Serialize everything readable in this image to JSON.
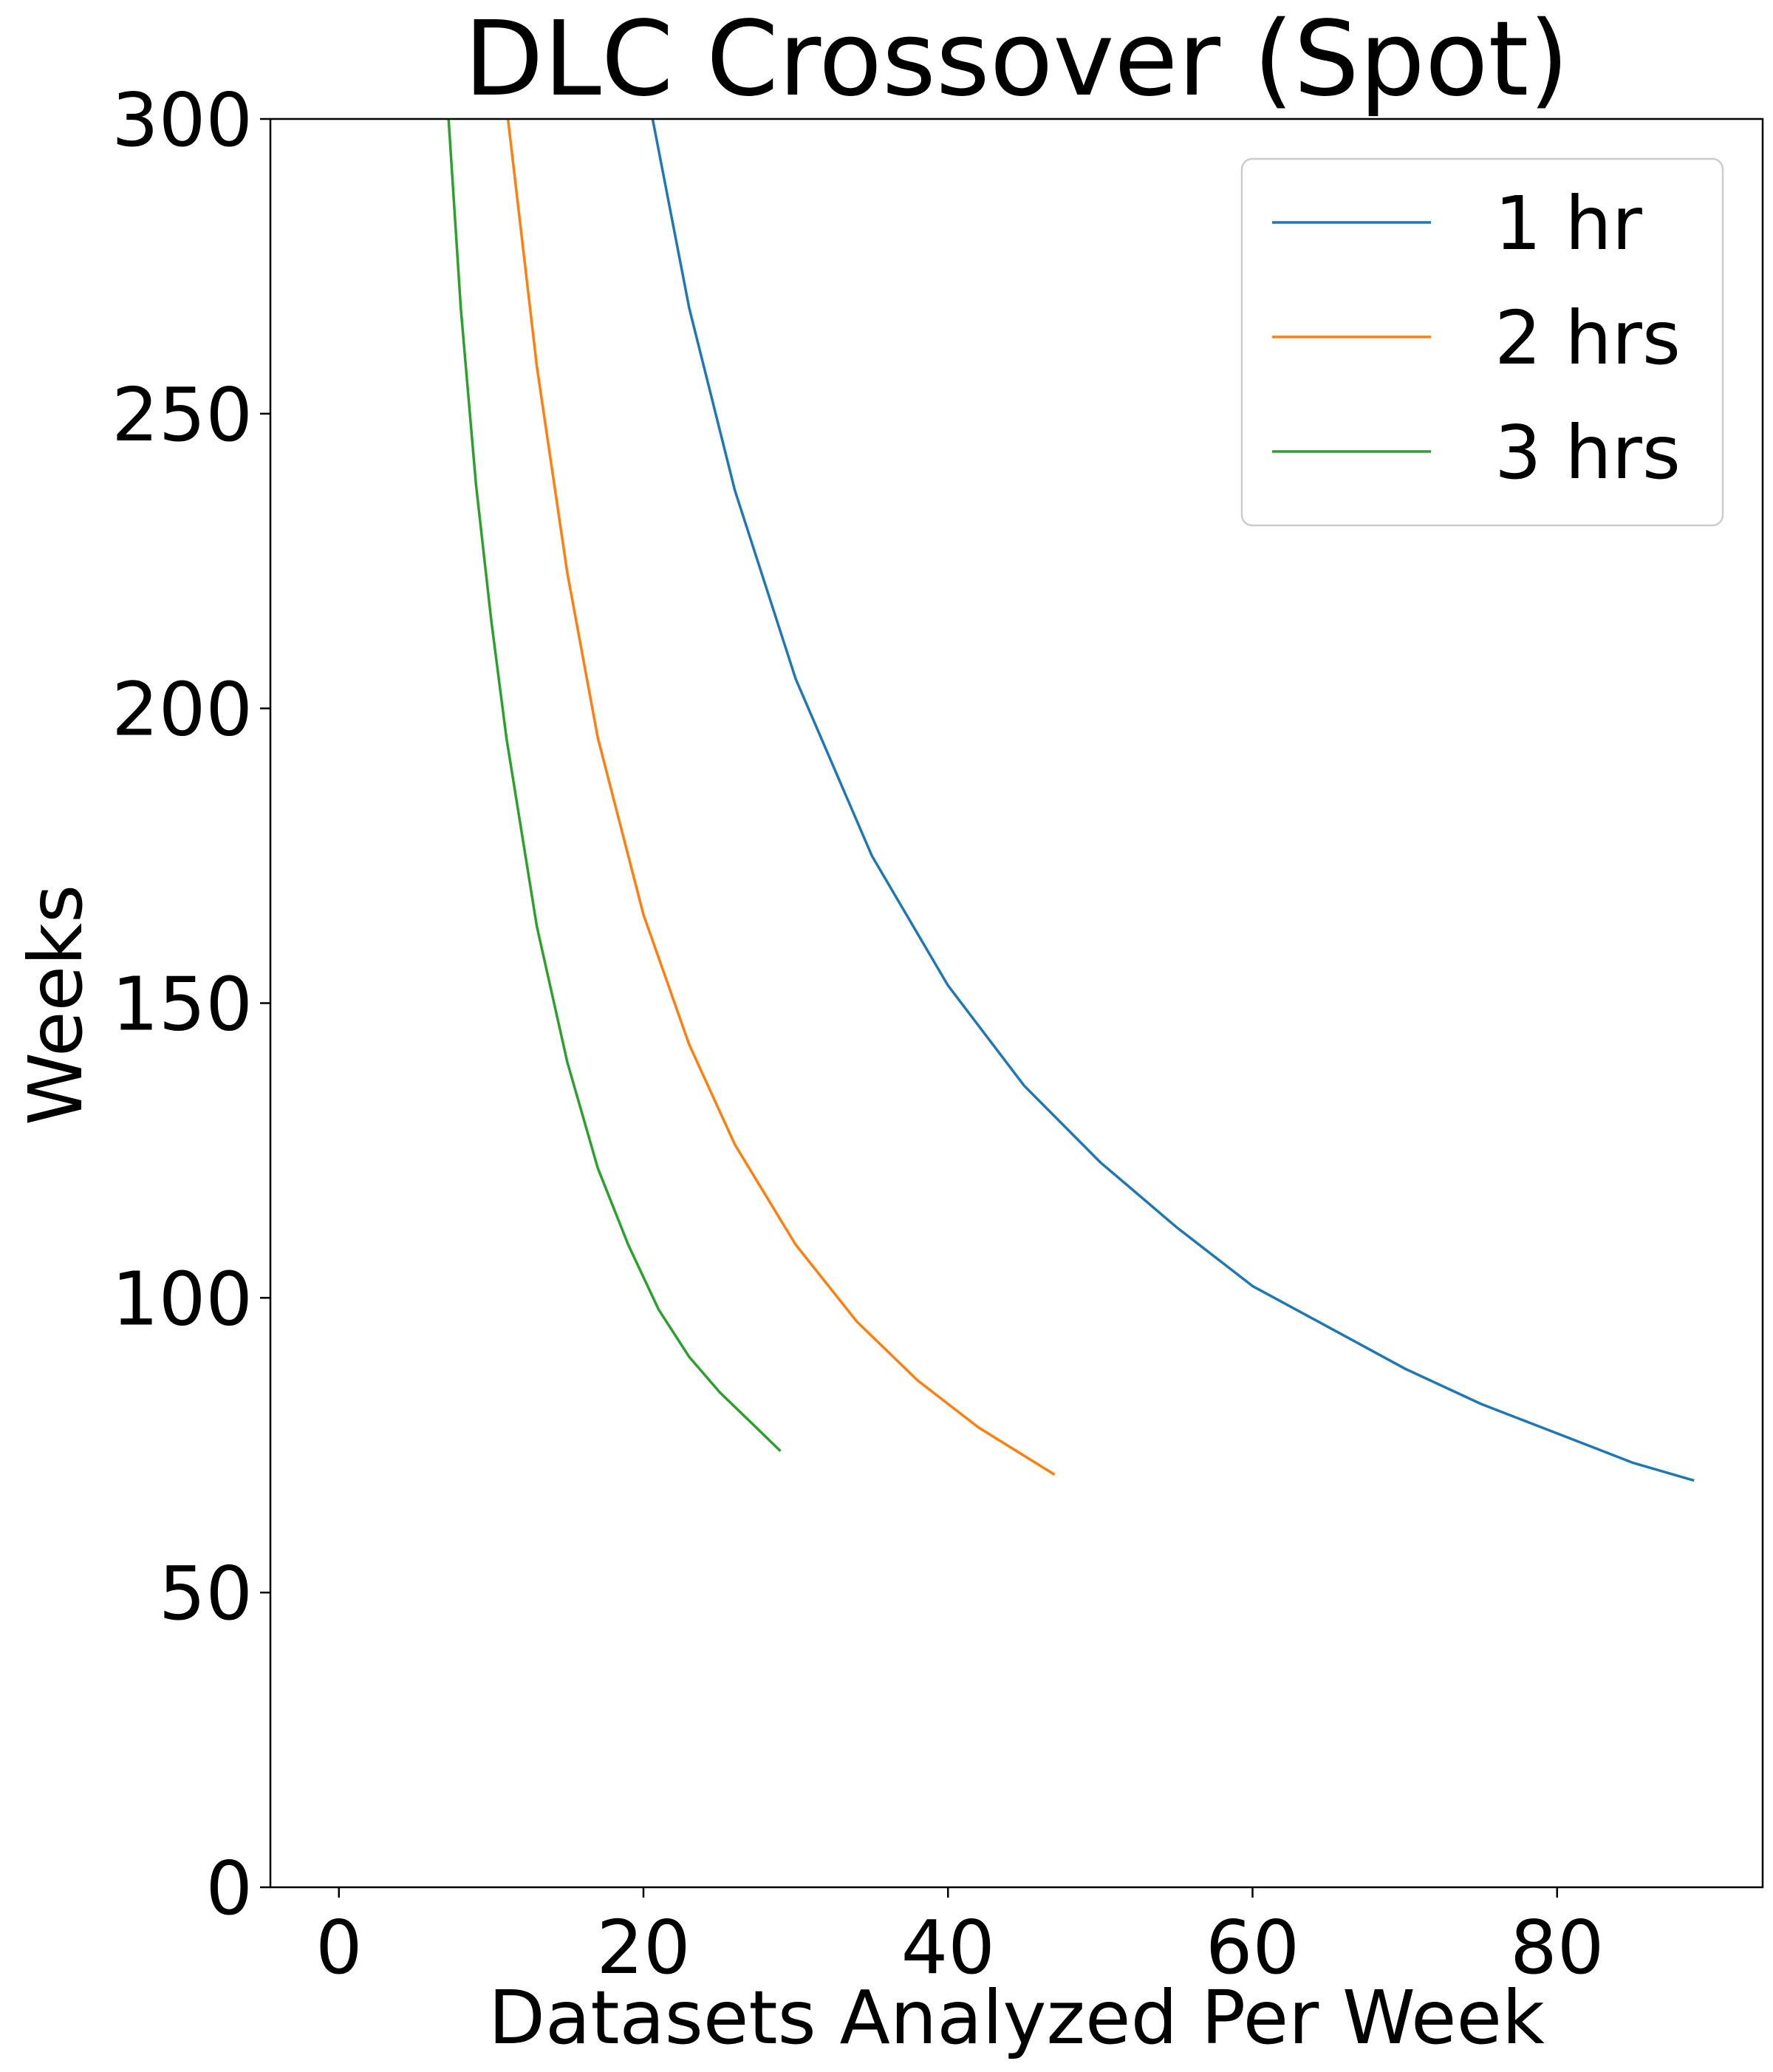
{
  "chart_data": {
    "type": "line",
    "title": "DLC Crossover (Spot)",
    "xlabel": "Datasets Analyzed Per Week",
    "ylabel": "Weeks",
    "xlim": [
      -4.5,
      93.5
    ],
    "ylim": [
      0,
      300
    ],
    "xticks": [
      0,
      20,
      40,
      60,
      80
    ],
    "xtick_labels": [
      "0",
      "20",
      "40",
      "60",
      "80"
    ],
    "yticks": [
      0,
      50,
      100,
      150,
      200,
      250,
      300
    ],
    "ytick_labels": [
      "0",
      "50",
      "100",
      "150",
      "200",
      "250",
      "300"
    ],
    "grid": false,
    "legend_position": "top-right",
    "series": [
      {
        "name": "1 hr",
        "color": "#1f77b4",
        "x": [
          20.6,
          23,
          26,
          30,
          35,
          40,
          45,
          50,
          55,
          60,
          65,
          70,
          75,
          80,
          85,
          89
        ],
        "y": [
          300,
          268,
          237,
          205,
          175,
          153,
          136,
          123,
          112,
          102,
          95,
          88,
          82,
          77,
          72,
          69
        ]
      },
      {
        "name": "2 hrs",
        "color": "#ff7f0e",
        "x": [
          11.1,
          13,
          15,
          17,
          20,
          23,
          26,
          30,
          34,
          38,
          42,
          47
        ],
        "y": [
          300,
          258,
          223,
          195,
          165,
          143,
          126,
          109,
          96,
          86,
          78,
          70
        ]
      },
      {
        "name": "3 hrs",
        "color": "#2ca02c",
        "x": [
          7.2,
          8,
          9,
          10,
          11,
          13,
          15,
          17,
          19,
          21,
          23,
          25,
          27,
          29
        ],
        "y": [
          300,
          268,
          238,
          215,
          195,
          163,
          140,
          122,
          109,
          98,
          90,
          84,
          79,
          74
        ]
      }
    ]
  }
}
